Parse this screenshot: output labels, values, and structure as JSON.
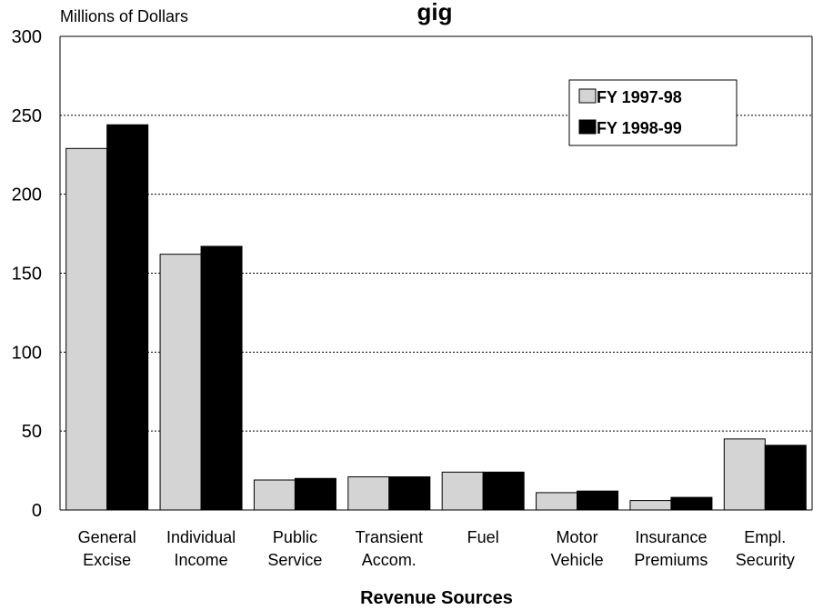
{
  "chart_data": {
    "type": "bar",
    "title_fragment": "gig",
    "ylabel": "Millions of Dollars",
    "xlabel": "Revenue Sources",
    "ylim": [
      0,
      300
    ],
    "yticks": [
      0,
      50,
      100,
      150,
      200,
      250,
      300
    ],
    "grid": "horizontal dashed",
    "legend_position": "top-right",
    "categories": [
      [
        "General",
        "Excise"
      ],
      [
        "Individual",
        "Income"
      ],
      [
        "Public",
        "Service"
      ],
      [
        "Transient",
        "Accom."
      ],
      [
        "Fuel"
      ],
      [
        "Motor",
        "Vehicle"
      ],
      [
        "Insurance",
        "Premiums"
      ],
      [
        "Empl.",
        "Security"
      ]
    ],
    "series": [
      {
        "name": "FY 1997-98",
        "color": "#d4d4d4",
        "values": [
          229,
          162,
          19,
          21,
          24,
          11,
          6,
          45
        ]
      },
      {
        "name": "FY 1998-99",
        "color": "#000000",
        "values": [
          244,
          167,
          20,
          21,
          24,
          12,
          8,
          41
        ]
      }
    ]
  }
}
